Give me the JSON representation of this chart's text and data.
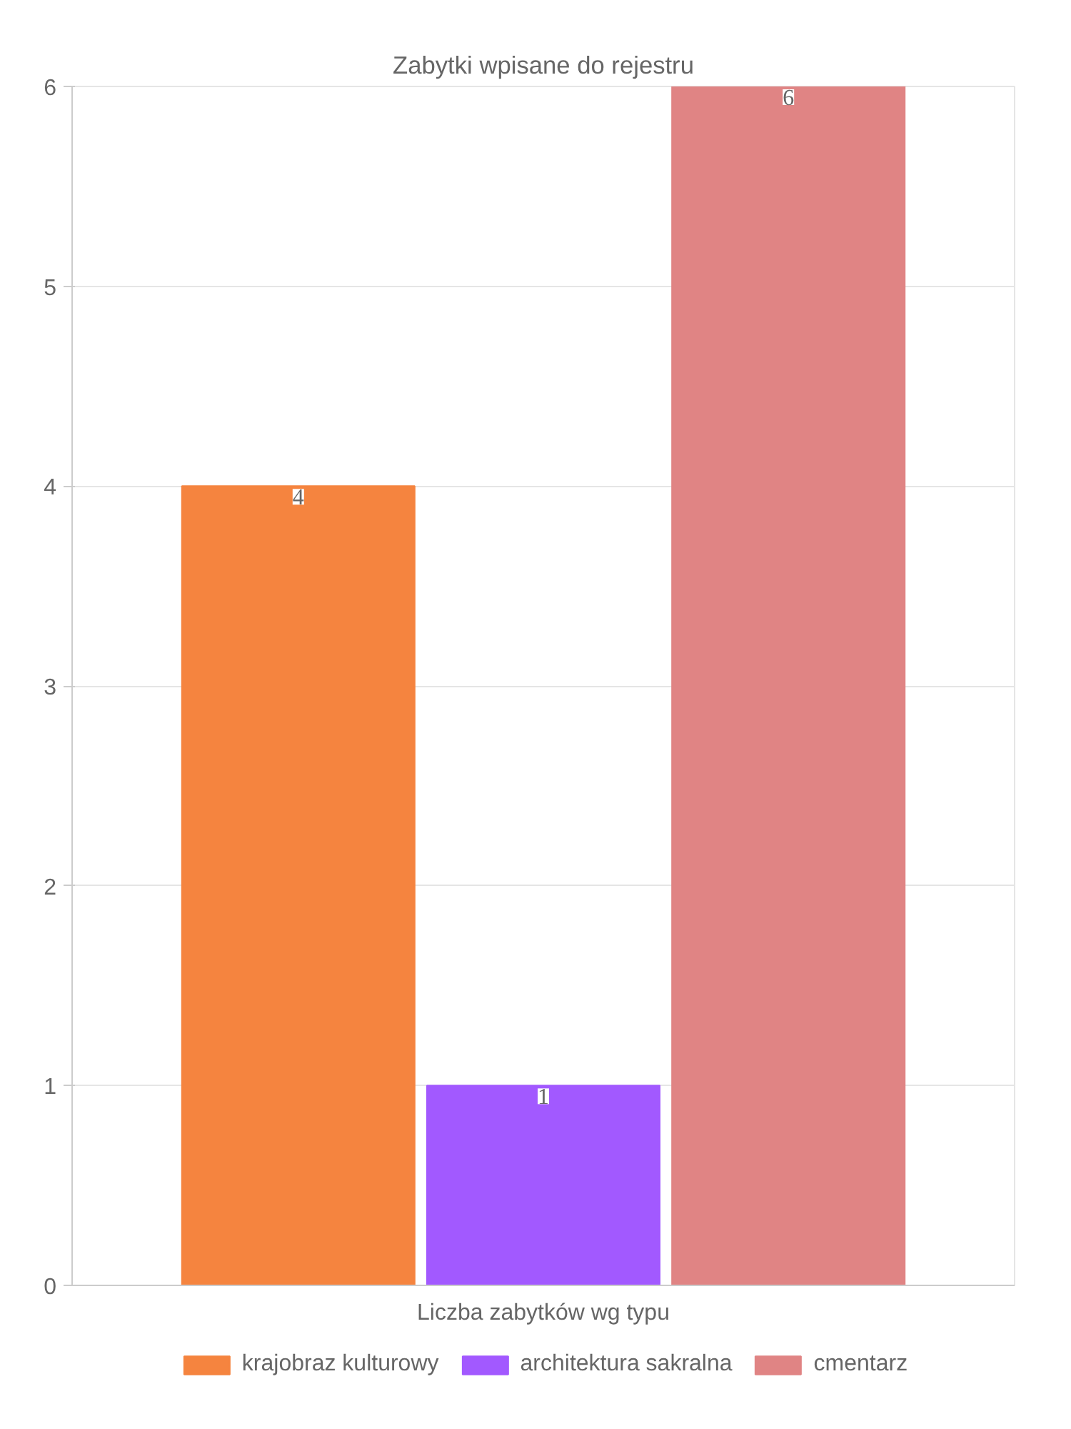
{
  "chart_data": {
    "type": "bar",
    "title": "Zabytki wpisane do rejestru",
    "categories": [
      "Liczba zabytków wg typu"
    ],
    "series": [
      {
        "name": "krajobraz kulturowy",
        "color": "#f5843f",
        "values": [
          4
        ]
      },
      {
        "name": "architektura sakralna",
        "color": "#a259ff",
        "values": [
          1
        ]
      },
      {
        "name": "cmentarz",
        "color": "#e08484",
        "values": [
          6
        ]
      }
    ],
    "ylim": [
      0,
      6
    ],
    "yticks": [
      0,
      1,
      2,
      3,
      4,
      5,
      6
    ],
    "grid": "y",
    "legend": "bottom",
    "data_labels": true
  }
}
